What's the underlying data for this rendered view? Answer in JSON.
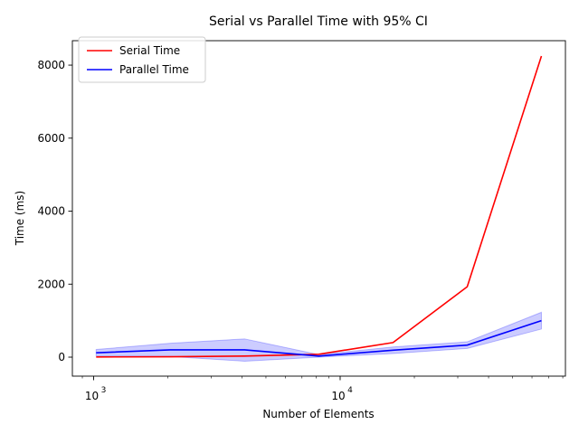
{
  "chart_data": {
    "type": "line",
    "title": "Serial vs Parallel Time with 95% CI",
    "xlabel": "Number of Elements",
    "ylabel": "Time (ms)",
    "xscale": "log",
    "xlim": [
      820,
      82000
    ],
    "ylim": [
      -520,
      8670
    ],
    "x_ticks": [
      {
        "value": 1000,
        "label": "10",
        "exp": "3"
      },
      {
        "value": 10000,
        "label": "10",
        "exp": "4"
      }
    ],
    "y_ticks": [
      0,
      2000,
      4000,
      6000,
      8000
    ],
    "grid": false,
    "legend": "upper-left",
    "x": [
      1024,
      2048,
      4096,
      8192,
      16384,
      32768,
      65536
    ],
    "series": [
      {
        "name": "Serial Time",
        "color": "#ff0000",
        "values": [
          5,
          10,
          30,
          80,
          400,
          1930,
          8250
        ]
      },
      {
        "name": "Parallel Time",
        "color": "#0000ff",
        "values": [
          120,
          200,
          200,
          30,
          190,
          330,
          1000
        ],
        "ci_lower": [
          30,
          20,
          -110,
          0,
          100,
          240,
          770
        ],
        "ci_upper": [
          210,
          380,
          500,
          70,
          280,
          420,
          1230
        ],
        "ci_color": "#0000ff"
      }
    ]
  }
}
